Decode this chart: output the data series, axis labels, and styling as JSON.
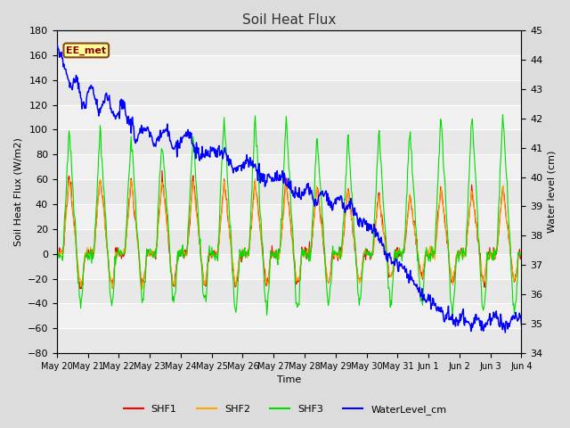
{
  "title": "Soil Heat Flux",
  "ylabel_left": "Soil Heat Flux (W/m2)",
  "ylabel_right": "Water level (cm)",
  "xlabel": "Time",
  "ylim_left": [
    -80,
    180
  ],
  "ylim_right": [
    34.0,
    45.0
  ],
  "yticks_left": [
    -80,
    -60,
    -40,
    -20,
    0,
    20,
    40,
    60,
    80,
    100,
    120,
    140,
    160,
    180
  ],
  "yticks_right": [
    34.0,
    35.0,
    36.0,
    37.0,
    38.0,
    39.0,
    40.0,
    41.0,
    42.0,
    43.0,
    44.0,
    45.0
  ],
  "annotation_text": "EE_met",
  "annotation_box_color": "#FFFF99",
  "annotation_box_edge": "#8B4513",
  "shf1_color": "#FF0000",
  "shf2_color": "#FFA500",
  "shf3_color": "#00DD00",
  "wl_color": "#0000FF",
  "bg_color": "#DCDCDC",
  "plot_bg_color": "#F0F0F0",
  "legend_entries": [
    "SHF1",
    "SHF2",
    "SHF3",
    "WaterLevel_cm"
  ],
  "tick_labels": [
    "May 20",
    "May 21",
    "May 22",
    "May 23",
    "May 24",
    "May 25",
    "May 26",
    "May 27",
    "May 28",
    "May 29",
    "May 30",
    "May 31",
    "Jun 1",
    "Jun 2",
    "Jun 3",
    "Jun 4"
  ],
  "n_days": 15,
  "seed": 12345
}
